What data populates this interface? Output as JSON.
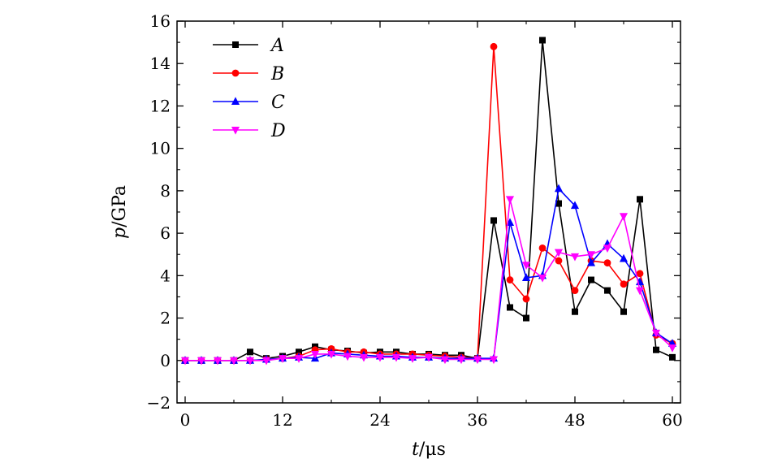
{
  "chart_data": {
    "type": "line",
    "title": "",
    "xlabel_var": "t",
    "xlabel_unit": "/μs",
    "ylabel_var": "p",
    "ylabel_unit": "/GPa",
    "xlim": [
      -1,
      61
    ],
    "ylim": [
      -2,
      16
    ],
    "xticks": [
      0,
      12,
      24,
      36,
      48,
      60
    ],
    "yticks": [
      -2,
      0,
      2,
      4,
      6,
      8,
      10,
      12,
      14,
      16
    ],
    "ytick_labels": [
      "−2",
      "0",
      "2",
      "4",
      "6",
      "8",
      "10",
      "12",
      "14",
      "16"
    ],
    "legend_position": "top-left",
    "x": [
      0,
      2,
      4,
      6,
      8,
      10,
      12,
      14,
      16,
      18,
      20,
      22,
      24,
      26,
      28,
      30,
      32,
      34,
      36,
      38,
      40,
      42,
      44,
      46,
      48,
      50,
      52,
      54,
      56,
      58,
      60
    ],
    "series": [
      {
        "name": "A",
        "color": "#000000",
        "marker": "square",
        "values": [
          0,
          0,
          0,
          0,
          0.4,
          0.1,
          0.2,
          0.4,
          0.65,
          0.5,
          0.45,
          0.35,
          0.4,
          0.4,
          0.3,
          0.3,
          0.25,
          0.25,
          0.1,
          6.6,
          2.5,
          2.0,
          15.1,
          7.4,
          2.3,
          3.8,
          3.3,
          2.3,
          7.6,
          0.5,
          0.15
        ]
      },
      {
        "name": "B",
        "color": "#ff0000",
        "marker": "circle",
        "values": [
          0,
          0,
          0,
          0,
          0,
          0.05,
          0.1,
          0.2,
          0.5,
          0.55,
          0.4,
          0.4,
          0.3,
          0.3,
          0.3,
          0.25,
          0.2,
          0.15,
          0.1,
          14.8,
          3.8,
          2.9,
          5.3,
          4.7,
          3.3,
          4.7,
          4.6,
          3.6,
          4.1,
          1.2,
          0.8
        ]
      },
      {
        "name": "C",
        "color": "#0000ff",
        "marker": "triangle-up",
        "values": [
          0,
          0,
          0,
          0,
          0,
          0.05,
          0.1,
          0.15,
          0.1,
          0.35,
          0.3,
          0.25,
          0.2,
          0.2,
          0.15,
          0.15,
          0.1,
          0.1,
          0.1,
          0.1,
          6.5,
          3.9,
          4.0,
          8.1,
          7.3,
          4.6,
          5.5,
          4.8,
          3.7,
          1.3,
          0.8
        ]
      },
      {
        "name": "D",
        "color": "#ff00ff",
        "marker": "triangle-down",
        "values": [
          0,
          0,
          0,
          0,
          0,
          0,
          0.1,
          0.1,
          0.3,
          0.3,
          0.2,
          0.15,
          0.15,
          0.15,
          0.1,
          0.15,
          0.05,
          0.05,
          0.05,
          0.05,
          7.6,
          4.5,
          3.9,
          5.1,
          4.9,
          5.0,
          5.3,
          6.8,
          3.3,
          1.3,
          0.6
        ]
      }
    ]
  }
}
